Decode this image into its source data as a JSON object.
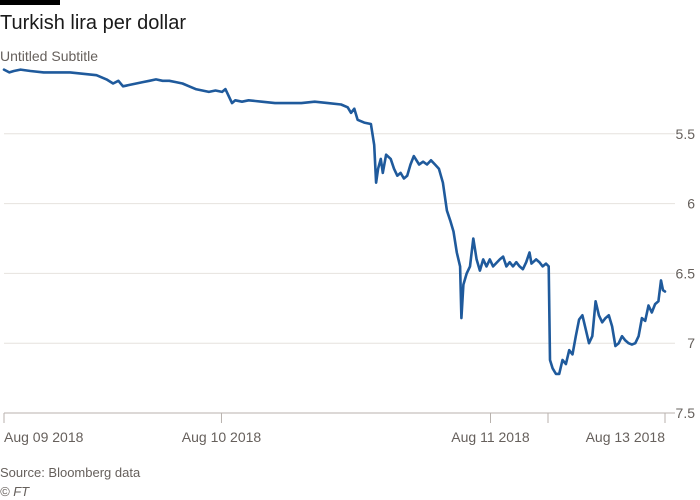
{
  "header": {
    "title": "Turkish lira per dollar",
    "subtitle": "Untitled Subtitle"
  },
  "footer": {
    "source": "Source: Bloomberg data",
    "credit": "© FT"
  },
  "colors": {
    "line": "#1f5a9c",
    "grid": "#e6e2de",
    "axis": "#b8b2ad",
    "text": "#66605c"
  },
  "chart_data": {
    "type": "line",
    "title": "Turkish lira per dollar",
    "subtitle": "Untitled Subtitle",
    "xlabel": "",
    "ylabel": "",
    "y_inverted": true,
    "ylim": [
      5.0,
      7.5
    ],
    "yticks": [
      5.5,
      6,
      6.5,
      7,
      7.5
    ],
    "ytick_labels": [
      "5.5",
      "6",
      "6.5",
      "7",
      "7.5"
    ],
    "xlim": [
      0,
      100
    ],
    "xticks": [
      {
        "x": 0,
        "label": "Aug 09 2018"
      },
      {
        "x": 32.9,
        "label": "Aug 10 2018"
      },
      {
        "x": 73.6,
        "label": "Aug 11 2018"
      },
      {
        "x": 82.3,
        "label": ""
      },
      {
        "x": 100,
        "label": "Aug 13 2018"
      }
    ],
    "grid": true,
    "legend": "none",
    "series": [
      {
        "points": [
          [
            0,
            5.04
          ],
          [
            0.8,
            5.06
          ],
          [
            1.5,
            5.05
          ],
          [
            2.5,
            5.04
          ],
          [
            4,
            5.05
          ],
          [
            6,
            5.06
          ],
          [
            8,
            5.06
          ],
          [
            10,
            5.06
          ],
          [
            12,
            5.07
          ],
          [
            14,
            5.08
          ],
          [
            15.5,
            5.11
          ],
          [
            16.5,
            5.14
          ],
          [
            17.3,
            5.12
          ],
          [
            18,
            5.16
          ],
          [
            19,
            5.15
          ],
          [
            20,
            5.14
          ],
          [
            21,
            5.13
          ],
          [
            22,
            5.12
          ],
          [
            23,
            5.11
          ],
          [
            24,
            5.12
          ],
          [
            25,
            5.12
          ],
          [
            26,
            5.13
          ],
          [
            27,
            5.14
          ],
          [
            28,
            5.16
          ],
          [
            29,
            5.18
          ],
          [
            30,
            5.19
          ],
          [
            31,
            5.2
          ],
          [
            32,
            5.19
          ],
          [
            33,
            5.2
          ],
          [
            33.5,
            5.18
          ],
          [
            34.5,
            5.28
          ],
          [
            35,
            5.26
          ],
          [
            36,
            5.27
          ],
          [
            37,
            5.26
          ],
          [
            39,
            5.27
          ],
          [
            41,
            5.28
          ],
          [
            43,
            5.28
          ],
          [
            45,
            5.28
          ],
          [
            47,
            5.27
          ],
          [
            49,
            5.28
          ],
          [
            51,
            5.29
          ],
          [
            52,
            5.31
          ],
          [
            52.5,
            5.35
          ],
          [
            53,
            5.32
          ],
          [
            53.5,
            5.4
          ],
          [
            54.5,
            5.42
          ],
          [
            55.5,
            5.43
          ],
          [
            56,
            5.58
          ],
          [
            56.3,
            5.85
          ],
          [
            56.6,
            5.75
          ],
          [
            57,
            5.68
          ],
          [
            57.3,
            5.78
          ],
          [
            57.8,
            5.65
          ],
          [
            58.5,
            5.68
          ],
          [
            59,
            5.75
          ],
          [
            59.5,
            5.8
          ],
          [
            60,
            5.78
          ],
          [
            60.5,
            5.82
          ],
          [
            61,
            5.8
          ],
          [
            61.5,
            5.72
          ],
          [
            62,
            5.66
          ],
          [
            62.8,
            5.72
          ],
          [
            63.4,
            5.7
          ],
          [
            64,
            5.72
          ],
          [
            64.6,
            5.69
          ],
          [
            65.2,
            5.72
          ],
          [
            65.8,
            5.75
          ],
          [
            66.4,
            5.85
          ],
          [
            67,
            6.05
          ],
          [
            67.5,
            6.12
          ],
          [
            68,
            6.2
          ],
          [
            68.5,
            6.35
          ],
          [
            69,
            6.45
          ],
          [
            69.2,
            6.82
          ],
          [
            69.5,
            6.58
          ],
          [
            70,
            6.5
          ],
          [
            70.5,
            6.45
          ],
          [
            71,
            6.25
          ],
          [
            71.5,
            6.4
          ],
          [
            72,
            6.48
          ],
          [
            72.5,
            6.4
          ],
          [
            73,
            6.45
          ],
          [
            73.5,
            6.4
          ],
          [
            74,
            6.45
          ],
          [
            75,
            6.4
          ],
          [
            75.5,
            6.38
          ],
          [
            76,
            6.45
          ],
          [
            76.5,
            6.42
          ],
          [
            77,
            6.45
          ],
          [
            77.5,
            6.42
          ],
          [
            78,
            6.45
          ],
          [
            78.5,
            6.47
          ],
          [
            79,
            6.42
          ],
          [
            79.5,
            6.35
          ],
          [
            79.8,
            6.43
          ],
          [
            80.5,
            6.4
          ],
          [
            81,
            6.42
          ],
          [
            81.5,
            6.45
          ],
          [
            82,
            6.43
          ],
          [
            82.4,
            6.45
          ],
          [
            82.6,
            7.12
          ],
          [
            83,
            7.18
          ],
          [
            83.5,
            7.22
          ],
          [
            84,
            7.22
          ],
          [
            84.5,
            7.12
          ],
          [
            85,
            7.15
          ],
          [
            85.5,
            7.05
          ],
          [
            86,
            7.08
          ],
          [
            86.5,
            6.95
          ],
          [
            87,
            6.83
          ],
          [
            87.5,
            6.8
          ],
          [
            88,
            6.9
          ],
          [
            88.5,
            7.0
          ],
          [
            89,
            6.95
          ],
          [
            89.5,
            6.7
          ],
          [
            90,
            6.8
          ],
          [
            90.5,
            6.85
          ],
          [
            91,
            6.82
          ],
          [
            91.5,
            6.8
          ],
          [
            92,
            6.88
          ],
          [
            92.5,
            7.02
          ],
          [
            93,
            7.0
          ],
          [
            93.5,
            6.95
          ],
          [
            94,
            6.98
          ],
          [
            94.5,
            7.0
          ],
          [
            95,
            7.01
          ],
          [
            95.5,
            7.0
          ],
          [
            96,
            6.95
          ],
          [
            96.5,
            6.82
          ],
          [
            97,
            6.84
          ],
          [
            97.5,
            6.73
          ],
          [
            98,
            6.78
          ],
          [
            98.5,
            6.72
          ],
          [
            99,
            6.7
          ],
          [
            99.4,
            6.55
          ],
          [
            99.7,
            6.62
          ],
          [
            100,
            6.63
          ]
        ]
      }
    ]
  }
}
